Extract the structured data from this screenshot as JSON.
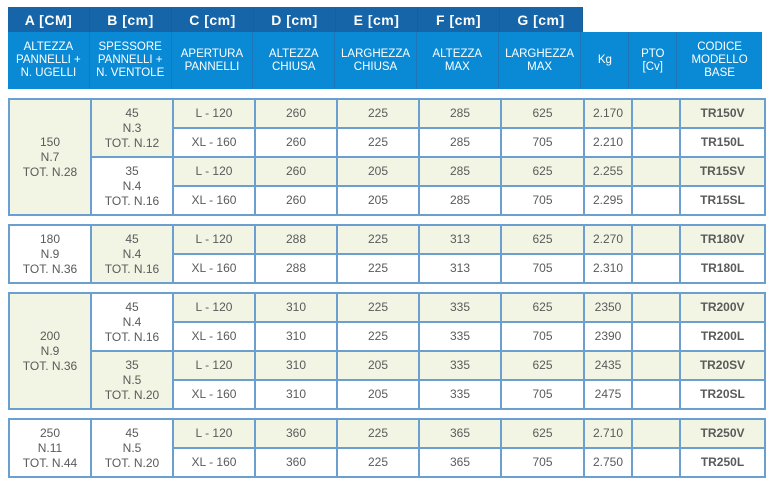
{
  "header": {
    "tabs": [
      "A [CM]",
      "B [cm]",
      "C [cm]",
      "D [cm]",
      "E [cm]",
      "F [cm]",
      "G [cm]"
    ],
    "columns": [
      [
        "ALTEZZA",
        "PANNELLI +",
        "N. UGELLI"
      ],
      [
        "SPESSORE",
        "PANNELLI +",
        "N. VENTOLE"
      ],
      [
        "APERTURA",
        "PANNELLI"
      ],
      [
        "ALTEZZA",
        "CHIUSA"
      ],
      [
        "LARGHEZZA",
        "CHIUSA"
      ],
      [
        "ALTEZZA",
        "MAX"
      ],
      [
        "LARGHEZZA",
        "MAX"
      ],
      [
        "Kg"
      ],
      [
        "PTO",
        "[Cv]"
      ],
      [
        "CODICE",
        "MODELLO",
        "BASE"
      ]
    ]
  },
  "colors": {
    "tab": "#1565a8",
    "subheader": "#0a8ad4",
    "border": "#6b9fd0",
    "highlight": "#f2f5e4"
  },
  "groups": [
    {
      "a": [
        "150",
        "N.7",
        "TOT. N.28"
      ],
      "a_highlighted": true,
      "subgroups": [
        {
          "b": [
            "45",
            "N.3",
            "TOT. N.12"
          ],
          "highlighted": true,
          "rows": [
            [
              "L - 120",
              "260",
              "225",
              "285",
              "625",
              "2.170",
              "",
              "TR150V"
            ],
            [
              "XL - 160",
              "260",
              "225",
              "285",
              "705",
              "2.210",
              "",
              "TR150L"
            ]
          ]
        },
        {
          "b": [
            "35",
            "N.4",
            "TOT. N.16"
          ],
          "highlighted": false,
          "rows": [
            [
              "L - 120",
              "260",
              "205",
              "285",
              "625",
              "2.255",
              "",
              "TR15SV"
            ],
            [
              "XL - 160",
              "260",
              "205",
              "285",
              "705",
              "2.295",
              "",
              "TR15SL"
            ]
          ]
        }
      ]
    },
    {
      "a": [
        "180",
        "N.9",
        "TOT. N.36"
      ],
      "a_highlighted": false,
      "subgroups": [
        {
          "b": [
            "45",
            "N.4",
            "TOT. N.16"
          ],
          "highlighted": true,
          "rows": [
            [
              "L - 120",
              "288",
              "225",
              "313",
              "625",
              "2.270",
              "",
              "TR180V"
            ],
            [
              "XL - 160",
              "288",
              "225",
              "313",
              "705",
              "2.310",
              "",
              "TR180L"
            ]
          ]
        }
      ]
    },
    {
      "a": [
        "200",
        "N.9",
        "TOT. N.36"
      ],
      "a_highlighted": true,
      "subgroups": [
        {
          "b": [
            "45",
            "N.4",
            "TOT. N.16"
          ],
          "highlighted": false,
          "rows": [
            [
              "L - 120",
              "310",
              "225",
              "335",
              "625",
              "2350",
              "",
              "TR200V"
            ],
            [
              "XL - 160",
              "310",
              "225",
              "335",
              "705",
              "2390",
              "",
              "TR200L"
            ]
          ]
        },
        {
          "b": [
            "35",
            "N.5",
            "TOT. N.20"
          ],
          "highlighted": true,
          "rows": [
            [
              "L - 120",
              "310",
              "205",
              "335",
              "625",
              "2435",
              "",
              "TR20SV"
            ],
            [
              "XL - 160",
              "310",
              "205",
              "335",
              "705",
              "2475",
              "",
              "TR20SL"
            ]
          ]
        }
      ]
    },
    {
      "a": [
        "250",
        "N.11",
        "TOT. N.44"
      ],
      "a_highlighted": false,
      "subgroups": [
        {
          "b": [
            "45",
            "N.5",
            "TOT. N.20"
          ],
          "highlighted": false,
          "rows": [
            [
              "L - 120",
              "360",
              "225",
              "365",
              "625",
              "2.710",
              "",
              "TR250V"
            ],
            [
              "XL - 160",
              "360",
              "225",
              "365",
              "705",
              "2.750",
              "",
              "TR250L"
            ]
          ]
        }
      ]
    }
  ]
}
